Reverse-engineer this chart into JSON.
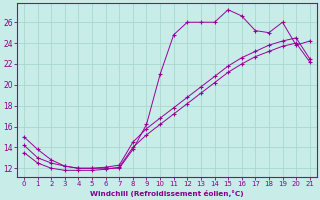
{
  "bg_color": "#c8ede8",
  "line_color": "#990099",
  "grid_color": "#a8d8d0",
  "xlabel": "Windchill (Refroidissement éolien,°C)",
  "xlabel_color": "#880088",
  "ylabel_color": "#880088",
  "tick_color": "#880088",
  "yticks": [
    12,
    14,
    16,
    18,
    20,
    22,
    24,
    26
  ],
  "xticks": [
    0,
    1,
    2,
    3,
    4,
    5,
    6,
    7,
    8,
    9,
    10,
    11,
    12,
    13,
    14,
    15,
    16,
    17,
    18,
    19,
    20,
    21
  ],
  "xlim": [
    -0.5,
    21.5
  ],
  "ylim": [
    11.2,
    27.8
  ],
  "curve_main_x": [
    0,
    1,
    2,
    3,
    4,
    5,
    6,
    7,
    8,
    9,
    10,
    11,
    12,
    13,
    14,
    15,
    16,
    17,
    18,
    19,
    20,
    21
  ],
  "curve_main_y": [
    15.0,
    13.8,
    12.8,
    12.2,
    12.0,
    12.0,
    12.0,
    12.0,
    13.8,
    16.2,
    21.0,
    24.8,
    26.0,
    26.0,
    26.0,
    27.2,
    26.6,
    25.2,
    25.0,
    26.0,
    23.8,
    24.2
  ],
  "curve_lin1_x": [
    0,
    1,
    2,
    3,
    4,
    5,
    6,
    7,
    8,
    9,
    10,
    11,
    12,
    13,
    14,
    15,
    16,
    17,
    18,
    19,
    20,
    21
  ],
  "curve_lin1_y": [
    14.2,
    13.0,
    12.5,
    12.2,
    12.0,
    12.0,
    12.1,
    12.3,
    14.5,
    15.8,
    16.8,
    17.8,
    18.8,
    19.8,
    20.8,
    21.8,
    22.6,
    23.2,
    23.8,
    24.2,
    24.5,
    22.5
  ],
  "curve_lin2_x": [
    0,
    1,
    2,
    3,
    4,
    5,
    6,
    7,
    8,
    9,
    10,
    11,
    12,
    13,
    14,
    15,
    16,
    17,
    18,
    19,
    20,
    21
  ],
  "curve_lin2_y": [
    13.5,
    12.5,
    12.0,
    11.8,
    11.8,
    11.8,
    11.9,
    12.1,
    14.0,
    15.2,
    16.2,
    17.2,
    18.2,
    19.2,
    20.2,
    21.2,
    22.0,
    22.7,
    23.2,
    23.7,
    24.0,
    22.2
  ]
}
